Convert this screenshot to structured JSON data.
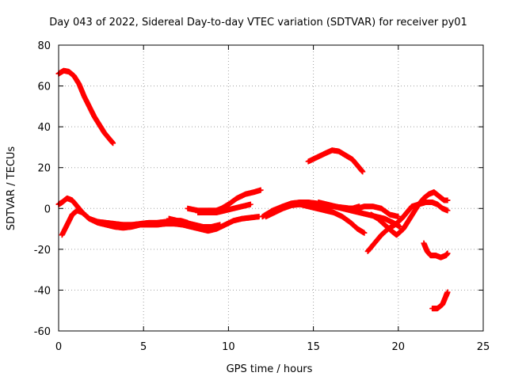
{
  "chart_data": {
    "type": "scatter",
    "title": "Day 043 of 2022, Sidereal Day-to-day VTEC variation (SDTVAR) for receiver py01",
    "xlabel": "GPS time / hours",
    "ylabel": "SDTVAR / TECUs",
    "xlim": [
      0,
      25
    ],
    "ylim": [
      -60,
      80
    ],
    "grid": true,
    "x_ticks": [
      0,
      5,
      10,
      15,
      20,
      25
    ],
    "y_ticks": [
      -60,
      -40,
      -20,
      0,
      20,
      40,
      60,
      80
    ],
    "x_tick_labels": [
      "0",
      "5",
      "10",
      "15",
      "20",
      "25"
    ],
    "y_tick_labels": [
      "-60",
      "-40",
      "-20",
      "0",
      "20",
      "40",
      "60",
      "80"
    ],
    "marker_color": "#ff0000",
    "series": [
      {
        "name": "arc-1",
        "points": [
          [
            0.0,
            66
          ],
          [
            0.3,
            67.5
          ],
          [
            0.6,
            67
          ],
          [
            0.9,
            65
          ],
          [
            1.2,
            61
          ],
          [
            1.5,
            55
          ],
          [
            1.8,
            50
          ],
          [
            2.1,
            45
          ],
          [
            2.4,
            41
          ],
          [
            2.7,
            37
          ],
          [
            3.0,
            34
          ],
          [
            3.2,
            32
          ]
        ]
      },
      {
        "name": "arc-2",
        "points": [
          [
            0.0,
            2
          ],
          [
            0.2,
            3
          ],
          [
            0.5,
            5
          ],
          [
            0.8,
            4
          ],
          [
            1.1,
            1
          ],
          [
            1.4,
            -2
          ],
          [
            1.8,
            -5
          ],
          [
            2.3,
            -6.5
          ],
          [
            2.8,
            -7
          ],
          [
            3.3,
            -7.5
          ],
          [
            3.8,
            -8
          ],
          [
            4.3,
            -8
          ],
          [
            4.8,
            -7.5
          ],
          [
            5.3,
            -7
          ],
          [
            5.8,
            -7
          ],
          [
            6.3,
            -6.5
          ],
          [
            6.8,
            -6
          ],
          [
            7.2,
            -6
          ],
          [
            7.6,
            -7
          ]
        ]
      },
      {
        "name": "arc-3",
        "points": [
          [
            0.2,
            -13
          ],
          [
            0.5,
            -8
          ],
          [
            0.8,
            -3
          ],
          [
            1.1,
            -1
          ],
          [
            1.4,
            -2
          ],
          [
            1.8,
            -5
          ],
          [
            2.3,
            -7
          ],
          [
            2.8,
            -8
          ],
          [
            3.3,
            -9
          ],
          [
            3.8,
            -9.5
          ],
          [
            4.3,
            -9
          ],
          [
            4.8,
            -8
          ],
          [
            5.3,
            -8
          ],
          [
            5.8,
            -8
          ],
          [
            6.3,
            -7.5
          ],
          [
            6.8,
            -7.5
          ],
          [
            7.3,
            -8
          ],
          [
            7.8,
            -9
          ],
          [
            8.3,
            -10
          ],
          [
            8.8,
            -11
          ],
          [
            9.3,
            -10
          ],
          [
            9.8,
            -8
          ],
          [
            10.3,
            -6
          ],
          [
            10.8,
            -5
          ],
          [
            11.3,
            -4.5
          ],
          [
            11.8,
            -4
          ]
        ]
      },
      {
        "name": "arc-4",
        "points": [
          [
            6.5,
            -5
          ],
          [
            7.0,
            -6
          ],
          [
            7.5,
            -7
          ],
          [
            8.0,
            -8
          ],
          [
            8.5,
            -9
          ],
          [
            9.0,
            -9
          ],
          [
            9.5,
            -8
          ]
        ]
      },
      {
        "name": "arc-5",
        "points": [
          [
            7.6,
            0
          ],
          [
            8.2,
            -1
          ],
          [
            8.8,
            -1
          ],
          [
            9.3,
            -1
          ],
          [
            9.6,
            0
          ],
          [
            10.0,
            2
          ],
          [
            10.5,
            5
          ],
          [
            11.0,
            7
          ],
          [
            11.5,
            8
          ],
          [
            11.9,
            9
          ]
        ]
      },
      {
        "name": "arc-6",
        "points": [
          [
            8.2,
            -2
          ],
          [
            8.8,
            -2
          ],
          [
            9.3,
            -2
          ],
          [
            9.8,
            -1
          ],
          [
            10.3,
            0
          ],
          [
            10.8,
            1
          ],
          [
            11.3,
            2
          ]
        ]
      },
      {
        "name": "arc-7",
        "points": [
          [
            12.2,
            -4
          ],
          [
            12.7,
            -2
          ],
          [
            13.2,
            0
          ],
          [
            13.7,
            1.5
          ],
          [
            14.2,
            2
          ],
          [
            14.7,
            2
          ],
          [
            15.2,
            1.5
          ],
          [
            15.7,
            1
          ],
          [
            16.2,
            1
          ],
          [
            16.7,
            0.5
          ],
          [
            17.2,
            0
          ],
          [
            17.6,
            0
          ],
          [
            18.0,
            1
          ],
          [
            18.5,
            1
          ],
          [
            19.0,
            0
          ],
          [
            19.5,
            -3
          ],
          [
            20.0,
            -4
          ]
        ]
      },
      {
        "name": "arc-8",
        "points": [
          [
            12.2,
            -3
          ],
          [
            12.7,
            -1
          ],
          [
            13.2,
            1
          ],
          [
            13.7,
            2.5
          ],
          [
            14.2,
            3
          ],
          [
            14.7,
            3
          ],
          [
            15.2,
            2.5
          ],
          [
            15.7,
            2
          ],
          [
            16.2,
            1
          ],
          [
            16.7,
            0
          ],
          [
            17.2,
            -1
          ],
          [
            17.7,
            -2
          ],
          [
            18.2,
            -3
          ],
          [
            18.7,
            -4
          ],
          [
            19.2,
            -5
          ],
          [
            19.7,
            -7
          ],
          [
            20.1,
            -9
          ]
        ]
      },
      {
        "name": "arc-9",
        "points": [
          [
            12.0,
            -4
          ],
          [
            12.6,
            -1
          ],
          [
            13.2,
            1
          ],
          [
            13.7,
            2
          ],
          [
            14.2,
            2
          ],
          [
            14.7,
            1
          ],
          [
            15.2,
            0
          ],
          [
            15.7,
            -1
          ],
          [
            16.2,
            -2
          ],
          [
            16.7,
            -4
          ],
          [
            17.2,
            -7
          ],
          [
            17.6,
            -10
          ],
          [
            18.0,
            -12
          ]
        ]
      },
      {
        "name": "arc-10",
        "points": [
          [
            14.7,
            23
          ],
          [
            15.2,
            25
          ],
          [
            15.7,
            27
          ],
          [
            16.1,
            28.5
          ],
          [
            16.5,
            28
          ],
          [
            16.9,
            26
          ],
          [
            17.3,
            24
          ],
          [
            17.6,
            21
          ],
          [
            17.9,
            18
          ]
        ]
      },
      {
        "name": "arc-11",
        "points": [
          [
            15.3,
            3
          ],
          [
            15.8,
            2
          ],
          [
            16.3,
            1
          ],
          [
            16.8,
            0
          ],
          [
            17.3,
            0
          ],
          [
            17.7,
            1
          ]
        ]
      },
      {
        "name": "arc-12",
        "points": [
          [
            18.2,
            -21
          ],
          [
            18.6,
            -17
          ],
          [
            19.0,
            -13
          ],
          [
            19.4,
            -10
          ],
          [
            19.8,
            -8
          ],
          [
            20.2,
            -5
          ],
          [
            20.5,
            -2
          ],
          [
            20.8,
            1
          ],
          [
            21.2,
            2
          ],
          [
            21.6,
            3
          ],
          [
            22.0,
            3
          ],
          [
            22.3,
            2
          ],
          [
            22.6,
            0
          ],
          [
            22.9,
            -1
          ]
        ]
      },
      {
        "name": "arc-13",
        "points": [
          [
            18.4,
            -3
          ],
          [
            18.8,
            -5
          ],
          [
            19.2,
            -8
          ],
          [
            19.6,
            -11
          ],
          [
            19.9,
            -13
          ],
          [
            20.3,
            -10
          ],
          [
            20.6,
            -6
          ],
          [
            20.9,
            -2
          ],
          [
            21.2,
            2
          ],
          [
            21.5,
            5
          ],
          [
            21.8,
            7
          ],
          [
            22.1,
            8
          ],
          [
            22.4,
            6
          ],
          [
            22.7,
            4
          ],
          [
            22.9,
            4
          ]
        ]
      },
      {
        "name": "arc-14",
        "points": [
          [
            21.5,
            -17
          ],
          [
            21.7,
            -21
          ],
          [
            21.9,
            -23
          ],
          [
            22.2,
            -23
          ],
          [
            22.5,
            -24
          ],
          [
            22.8,
            -23
          ],
          [
            22.9,
            -22
          ]
        ]
      },
      {
        "name": "arc-15",
        "points": [
          [
            22.0,
            -49
          ],
          [
            22.3,
            -49
          ],
          [
            22.6,
            -47
          ],
          [
            22.8,
            -43
          ],
          [
            22.9,
            -41
          ]
        ]
      }
    ]
  }
}
